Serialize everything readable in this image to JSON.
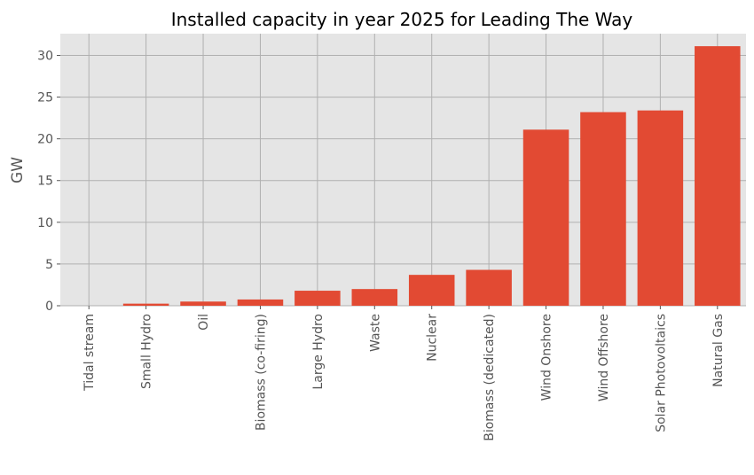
{
  "chart_data": {
    "type": "bar",
    "title": "Installed capacity in year 2025 for Leading The Way",
    "xlabel": "",
    "ylabel": "GW",
    "categories": [
      "Tidal stream",
      "Small Hydro",
      "Oil",
      "Biomass (co-firing)",
      "Large Hydro",
      "Waste",
      "Nuclear",
      "Biomass (dedicated)",
      "Wind Onshore",
      "Wind Offshore",
      "Solar Photovoltaics",
      "Natural Gas"
    ],
    "values": [
      0.0,
      0.25,
      0.5,
      0.75,
      1.8,
      2.0,
      3.7,
      4.3,
      21.1,
      23.2,
      23.4,
      31.1
    ],
    "ylim": [
      0,
      32.6
    ],
    "yticks": [
      0,
      5,
      10,
      15,
      20,
      25,
      30
    ],
    "grid": true,
    "colors": {
      "bar": "#E24A33",
      "plot_background": "#E5E5E5",
      "grid": "#B0B0B0"
    }
  }
}
